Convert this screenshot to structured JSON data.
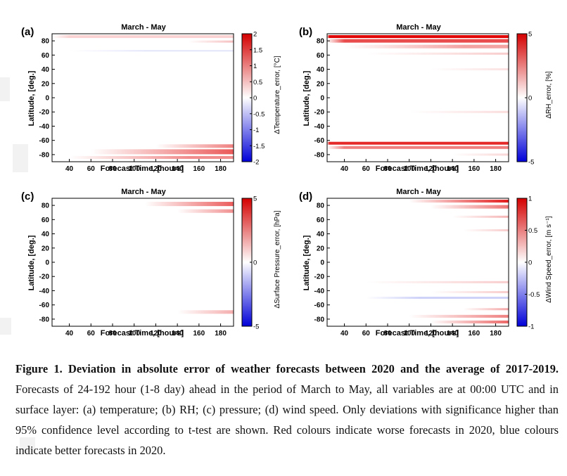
{
  "panels": [
    {
      "id": "a",
      "tag": "(a)",
      "title": "March - May",
      "ylabel": "Latitude, [deg.]",
      "xlabel": "Forecast Time, [hours]",
      "xticks": [
        "40",
        "60",
        "80",
        "100",
        "120",
        "140",
        "160",
        "180"
      ],
      "yticks": [
        "80",
        "60",
        "40",
        "20",
        "0",
        "-20",
        "-40",
        "-60",
        "-80"
      ],
      "cbar_label": "ΔTemperature_error, [°C]",
      "cbar_ticks": [
        "2",
        "1.5",
        "1",
        "0.5",
        "0",
        "-0.5",
        "-1",
        "-1.5",
        "-2"
      ],
      "cbar_range": [
        -2,
        2
      ],
      "bands": [
        {
          "lat": 86,
          "width": 4,
          "start": 24,
          "full": 40,
          "max": 0.35
        },
        {
          "lat": 79,
          "width": 3,
          "start": 150,
          "full": 192,
          "max": 0.5
        },
        {
          "lat": 66,
          "width": 2,
          "start": 40,
          "full": 110,
          "max": -0.25
        },
        {
          "lat": -68,
          "width": 5,
          "start": 120,
          "full": 192,
          "max": 1.0
        },
        {
          "lat": -76,
          "width": 7,
          "start": 60,
          "full": 192,
          "max": 1.3
        },
        {
          "lat": -84,
          "width": 4,
          "start": 40,
          "full": 150,
          "max": 0.9
        }
      ]
    },
    {
      "id": "b",
      "tag": "(b)",
      "title": "March - May",
      "ylabel": "Latitude, [deg.]",
      "xlabel": "Forecast Time, [hours]",
      "xticks": [
        "40",
        "60",
        "80",
        "100",
        "120",
        "140",
        "160",
        "180"
      ],
      "yticks": [
        "80",
        "60",
        "40",
        "20",
        "0",
        "-20",
        "-40",
        "-60",
        "-80"
      ],
      "cbar_label": "ΔRH_error, [%]",
      "cbar_ticks": [
        "5",
        "0",
        "-5"
      ],
      "cbar_range": [
        -5,
        5
      ],
      "bands": [
        {
          "lat": 86,
          "width": 4,
          "start": 24,
          "full": 26,
          "max": 5
        },
        {
          "lat": 80,
          "width": 5,
          "start": 24,
          "full": 40,
          "max": 3.5
        },
        {
          "lat": 72,
          "width": 5,
          "start": 40,
          "full": 150,
          "max": 1.8
        },
        {
          "lat": 62,
          "width": 3,
          "start": 60,
          "full": 192,
          "max": 1
        },
        {
          "lat": 40,
          "width": 3,
          "start": 120,
          "full": 192,
          "max": 0.6
        },
        {
          "lat": -20,
          "width": 3,
          "start": 100,
          "full": 192,
          "max": 0.7
        },
        {
          "lat": -64,
          "width": 4,
          "start": 24,
          "full": 26,
          "max": 4.2
        },
        {
          "lat": -70,
          "width": 4,
          "start": 24,
          "full": 40,
          "max": 2.5
        },
        {
          "lat": -80,
          "width": 3,
          "start": 140,
          "full": 192,
          "max": 0.8
        }
      ]
    },
    {
      "id": "c",
      "tag": "(c)",
      "title": "March - May",
      "ylabel": "Latitude, [deg.]",
      "xlabel": "Forecast Time, [hours]",
      "xticks": [
        "40",
        "60",
        "80",
        "100",
        "120",
        "140",
        "160",
        "180"
      ],
      "yticks": [
        "80",
        "60",
        "40",
        "20",
        "0",
        "-20",
        "-40",
        "-60",
        "-80"
      ],
      "cbar_label": "ΔSurface Pressure_error, [hPa]",
      "cbar_ticks": [
        "5",
        "0",
        "-5"
      ],
      "cbar_range": [
        -5,
        5
      ],
      "bands": [
        {
          "lat": 82,
          "width": 6,
          "start": 110,
          "full": 192,
          "max": 3.2
        },
        {
          "lat": 72,
          "width": 5,
          "start": 140,
          "full": 192,
          "max": 2.2
        },
        {
          "lat": -70,
          "width": 5,
          "start": 140,
          "full": 192,
          "max": 1.6
        }
      ]
    },
    {
      "id": "d",
      "tag": "(d)",
      "title": "March - May",
      "ylabel": "Latitude, [deg.]",
      "xlabel": "Forecast Time, [hours]",
      "xticks": [
        "40",
        "60",
        "80",
        "100",
        "120",
        "140",
        "160",
        "180"
      ],
      "yticks": [
        "80",
        "60",
        "40",
        "20",
        "0",
        "-20",
        "-40",
        "-60",
        "-80"
      ],
      "cbar_label": "ΔWind Speed_error, [m s⁻¹]",
      "cbar_ticks": [
        "1",
        "0.5",
        "0",
        "-0.5",
        "-1"
      ],
      "cbar_range": [
        -1,
        1
      ],
      "bands": [
        {
          "lat": 86,
          "width": 4,
          "start": 100,
          "full": 192,
          "max": 0.9
        },
        {
          "lat": 78,
          "width": 5,
          "start": 120,
          "full": 192,
          "max": 0.55
        },
        {
          "lat": 64,
          "width": 3,
          "start": 140,
          "full": 192,
          "max": 0.3
        },
        {
          "lat": 45,
          "width": 3,
          "start": 150,
          "full": 192,
          "max": 0.2
        },
        {
          "lat": -28,
          "width": 3,
          "start": 60,
          "full": 192,
          "max": 0.2
        },
        {
          "lat": -42,
          "width": 3,
          "start": 120,
          "full": 192,
          "max": 0.2
        },
        {
          "lat": -50,
          "width": 3,
          "start": 60,
          "full": 110,
          "max": -0.22
        },
        {
          "lat": -66,
          "width": 3,
          "start": 150,
          "full": 192,
          "max": 0.35
        },
        {
          "lat": -76,
          "width": 4,
          "start": 100,
          "full": 192,
          "max": 0.5
        },
        {
          "lat": -84,
          "width": 4,
          "start": 120,
          "full": 192,
          "max": 0.6
        }
      ]
    }
  ],
  "caption": {
    "bold": "Figure 1. Deviation in absolute error of weather forecasts between 2020 and the average of 2017-2019.",
    "text": " Forecasts of 24-192 hour (1-8 day) ahead in the period of March to May, all variables are at 00:00 UTC and in surface layer: (a) temperature; (b) RH; (c) pressure; (d) wind speed. Only deviations with significance higher than 95% confidence level according to t-test are shown. Red colours indicate worse forecasts in 2020, blue colours indicate better forecasts in 2020."
  }
}
